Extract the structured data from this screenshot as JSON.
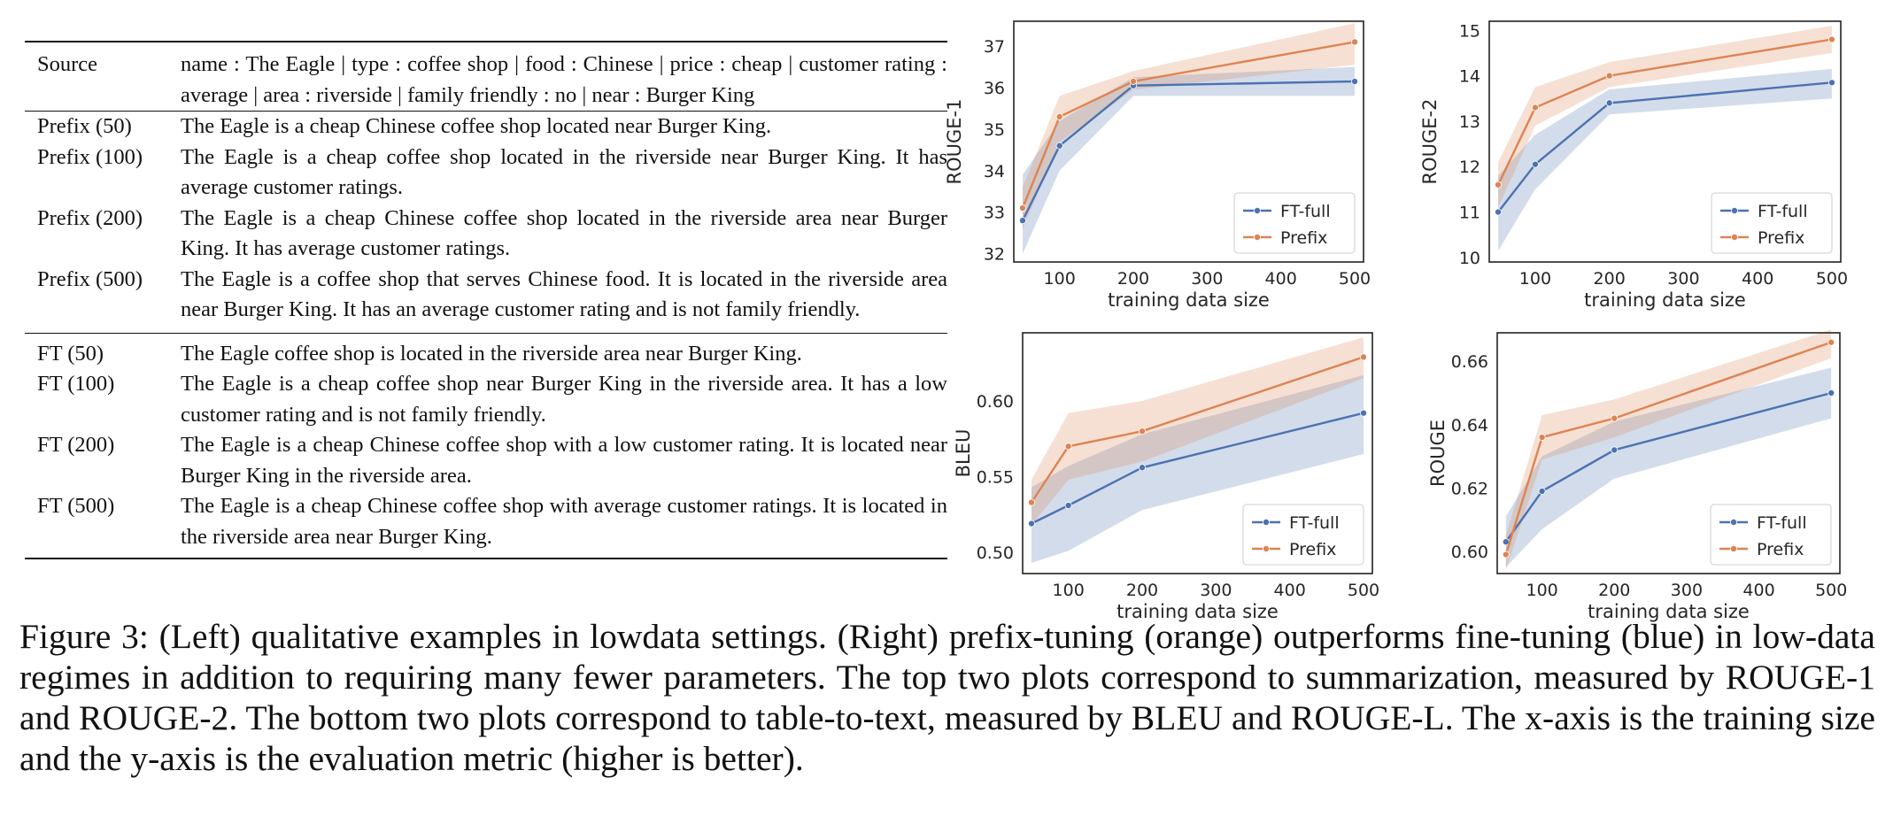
{
  "table": {
    "source": {
      "label": "Source",
      "text": "name : The Eagle | type : coffee shop | food : Chinese | price : cheap | customer rating : average | area : riverside | family friendly : no | near : Burger King"
    },
    "prefix_rows": [
      {
        "label": "Prefix (50)",
        "text": "The Eagle is a cheap Chinese coffee shop located near Burger King."
      },
      {
        "label": "Prefix (100)",
        "text": "The Eagle is a cheap coffee shop located in the riverside near Burger King. It has average customer ratings."
      },
      {
        "label": "Prefix (200)",
        "text": "The Eagle is a cheap Chinese coffee shop located in the riverside area near Burger King. It has average customer ratings."
      },
      {
        "label": "Prefix (500)",
        "text": "The Eagle is a coffee shop that serves Chinese food. It is located in the riverside area near Burger King. It has an average customer rating and is not family friendly."
      }
    ],
    "ft_rows": [
      {
        "label": "FT (50)",
        "text": "The Eagle coffee shop is located in the riverside area near Burger King."
      },
      {
        "label": "FT (100)",
        "text": "The Eagle is a cheap coffee shop near Burger King in the riverside area. It has a low customer rating and is not family friendly."
      },
      {
        "label": "FT (200)",
        "text": "The Eagle is a cheap Chinese coffee shop with a low customer rating. It is located near Burger King in the riverside area."
      },
      {
        "label": "FT (500)",
        "text": "The Eagle is a cheap Chinese coffee shop with average customer ratings. It is located in the riverside area near Burger King."
      }
    ]
  },
  "chart_data": [
    {
      "type": "line",
      "xlabel": "training data size",
      "ylabel": "ROUGE-1",
      "xlim": [
        38,
        512
      ],
      "ylim": [
        31.8,
        37.6
      ],
      "xticks": [
        100,
        200,
        300,
        400,
        500
      ],
      "yticks": [
        32,
        33,
        34,
        35,
        36,
        37
      ],
      "tick_decimals": 0,
      "legend_position": "lower right",
      "x": [
        50,
        100,
        200,
        500
      ],
      "series": [
        {
          "name": "FT-full",
          "color": "#4c72b0",
          "values": [
            32.8,
            34.6,
            36.05,
            36.15
          ],
          "band_low": [
            32.0,
            34.0,
            35.8,
            35.8
          ],
          "band_high": [
            33.9,
            35.2,
            36.25,
            36.5
          ]
        },
        {
          "name": "Prefix",
          "color": "#dd8452",
          "values": [
            33.1,
            35.3,
            36.15,
            37.1
          ],
          "band_low": [
            32.6,
            34.7,
            35.95,
            36.55
          ],
          "band_high": [
            33.6,
            35.8,
            36.4,
            37.55
          ]
        }
      ]
    },
    {
      "type": "line",
      "xlabel": "training data size",
      "ylabel": "ROUGE-2",
      "xlim": [
        38,
        512
      ],
      "ylim": [
        9.9,
        15.2
      ],
      "xticks": [
        100,
        200,
        300,
        400,
        500
      ],
      "yticks": [
        10,
        11,
        12,
        13,
        14,
        15
      ],
      "tick_decimals": 0,
      "legend_position": "lower right",
      "x": [
        50,
        100,
        200,
        500
      ],
      "series": [
        {
          "name": "FT-full",
          "color": "#4c72b0",
          "values": [
            11.0,
            12.05,
            13.4,
            13.85
          ],
          "band_low": [
            10.15,
            11.5,
            13.15,
            13.5
          ],
          "band_high": [
            11.8,
            12.7,
            13.7,
            14.15
          ]
        },
        {
          "name": "Prefix",
          "color": "#dd8452",
          "values": [
            11.6,
            13.3,
            14.0,
            14.8
          ],
          "band_low": [
            11.1,
            12.9,
            13.75,
            14.5
          ],
          "band_high": [
            12.1,
            13.75,
            14.3,
            15.1
          ]
        }
      ]
    },
    {
      "type": "line",
      "xlabel": "training data size",
      "ylabel": "BLEU",
      "xlim": [
        38,
        512
      ],
      "ylim": [
        0.486,
        0.645
      ],
      "xticks": [
        100,
        200,
        300,
        400,
        500
      ],
      "yticks": [
        0.5,
        0.55,
        0.6
      ],
      "tick_decimals": 2,
      "legend_position": "lower right",
      "x": [
        50,
        100,
        200,
        500
      ],
      "series": [
        {
          "name": "FT-full",
          "color": "#4c72b0",
          "values": [
            0.519,
            0.531,
            0.556,
            0.592
          ],
          "band_low": [
            0.493,
            0.501,
            0.528,
            0.565
          ],
          "band_high": [
            0.543,
            0.557,
            0.578,
            0.617
          ]
        },
        {
          "name": "Prefix",
          "color": "#dd8452",
          "values": [
            0.533,
            0.57,
            0.58,
            0.629
          ],
          "band_low": [
            0.518,
            0.548,
            0.56,
            0.615
          ],
          "band_high": [
            0.548,
            0.592,
            0.6,
            0.642
          ]
        }
      ]
    },
    {
      "type": "line",
      "xlabel": "training data size",
      "ylabel": "ROUGE",
      "xlim": [
        38,
        512
      ],
      "ylim": [
        0.593,
        0.669
      ],
      "xticks": [
        100,
        200,
        300,
        400,
        500
      ],
      "yticks": [
        0.6,
        0.62,
        0.64,
        0.66
      ],
      "tick_decimals": 2,
      "legend_position": "lower right",
      "x": [
        50,
        100,
        200,
        500
      ],
      "series": [
        {
          "name": "FT-full",
          "color": "#4c72b0",
          "values": [
            0.603,
            0.619,
            0.632,
            0.65
          ],
          "band_low": [
            0.595,
            0.607,
            0.623,
            0.642
          ],
          "band_high": [
            0.611,
            0.63,
            0.641,
            0.658
          ]
        },
        {
          "name": "Prefix",
          "color": "#dd8452",
          "values": [
            0.599,
            0.636,
            0.642,
            0.666
          ],
          "band_low": [
            0.594,
            0.629,
            0.636,
            0.661
          ],
          "band_high": [
            0.605,
            0.643,
            0.648,
            0.67
          ]
        }
      ]
    }
  ],
  "caption": "Figure 3:  (Left) qualitative examples in lowdata settings. (Right) prefix-tuning (orange) outperforms fine-tuning (blue) in low-data regimes in addition to requiring many fewer parameters. The top two plots correspond to summarization, measured by ROUGE-1 and ROUGE-2. The bottom two plots correspond to table-to-text, measured by BLEU and ROUGE-L. The x-axis is the training size and the y-axis is the evaluation metric (higher is better)."
}
